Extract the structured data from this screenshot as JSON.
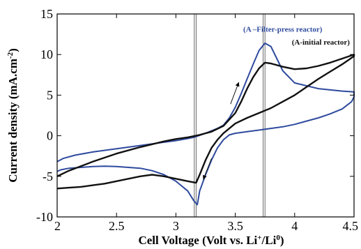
{
  "chart_data": {
    "type": "line",
    "xlabel": "Cell Voltage (Volt vs. Li",
    "xlabel_sup1": "+",
    "xlabel_mid": "/Li",
    "xlabel_sup2": "0",
    "xlabel_end": ")",
    "ylabel": "Current density (mA.cm",
    "ylabel_sup": "-2",
    "ylabel_end": ")",
    "xlim": [
      2,
      4.5
    ],
    "ylim": [
      -10,
      15
    ],
    "xticks": [
      2,
      2.5,
      3,
      3.5,
      4,
      4.5
    ],
    "xtick_labels": [
      "2",
      "2.5",
      "3",
      "3.5",
      "4",
      "4.5"
    ],
    "yticks": [
      -10,
      -5,
      0,
      5,
      10,
      15
    ],
    "ytick_labels": [
      "-10",
      "-5",
      "0",
      "5",
      "10",
      "15"
    ],
    "grid": false,
    "reference_lines_x": [
      3.155,
      3.17,
      3.735,
      3.75
    ],
    "colors": {
      "filter_press": "#2e4a9e",
      "initial": "#111111",
      "axis": "#000000"
    },
    "annotations": [
      {
        "text": "(A –Filter-press reactor)",
        "x": 3.9,
        "y": 12.8,
        "series": "filter_press"
      },
      {
        "text": "(A-initial reactor)",
        "x": 4.22,
        "y": 11.2,
        "series": "initial"
      }
    ],
    "arrows": [
      {
        "from": [
          3.46,
          3.9
        ],
        "to": [
          3.53,
          6.6
        ]
      },
      {
        "from": [
          3.3,
          -2.8
        ],
        "to": [
          3.23,
          -5.4
        ]
      }
    ],
    "series": [
      {
        "key": "filter_press",
        "x": [
          2.0,
          2.05,
          2.15,
          2.3,
          2.5,
          2.7,
          2.9,
          3.0,
          3.1,
          3.15,
          3.2,
          3.25,
          3.3,
          3.35,
          3.4,
          3.45,
          3.5,
          3.55,
          3.6,
          3.65,
          3.7,
          3.75,
          3.8,
          3.85,
          3.9,
          4.0,
          4.2,
          4.4,
          4.5,
          4.5,
          4.48,
          4.4,
          4.3,
          4.2,
          4.1,
          4.0,
          3.9,
          3.8,
          3.7,
          3.6,
          3.5,
          3.45,
          3.4,
          3.35,
          3.3,
          3.25,
          3.2,
          3.18,
          3.15,
          3.1,
          3.0,
          2.9,
          2.8,
          2.7,
          2.6,
          2.5,
          2.4,
          2.3,
          2.2,
          2.1,
          2.03,
          2.0
        ],
        "y": [
          -3.2,
          -2.8,
          -2.4,
          -2.0,
          -1.6,
          -1.2,
          -0.8,
          -0.6,
          -0.35,
          -0.2,
          0.05,
          0.3,
          0.6,
          0.9,
          1.3,
          2.2,
          3.5,
          5.2,
          7.0,
          8.8,
          10.5,
          11.4,
          11.0,
          9.5,
          8.0,
          6.5,
          5.8,
          5.5,
          5.4,
          4.8,
          4.2,
          3.3,
          2.7,
          2.2,
          1.8,
          1.4,
          1.1,
          0.9,
          0.7,
          0.5,
          0.3,
          0.1,
          -0.5,
          -1.5,
          -3.0,
          -4.8,
          -6.8,
          -8.5,
          -8.0,
          -6.8,
          -5.6,
          -4.8,
          -4.3,
          -4.0,
          -3.9,
          -3.8,
          -3.75,
          -3.8,
          -3.9,
          -4.0,
          -4.2,
          -4.4
        ]
      },
      {
        "key": "initial",
        "x": [
          2.0,
          2.1,
          2.3,
          2.5,
          2.7,
          2.9,
          3.0,
          3.1,
          3.15,
          3.2,
          3.3,
          3.4,
          3.5,
          3.55,
          3.6,
          3.65,
          3.7,
          3.75,
          3.8,
          3.9,
          4.0,
          4.1,
          4.2,
          4.3,
          4.4,
          4.5,
          4.5,
          4.4,
          4.3,
          4.2,
          4.1,
          4.0,
          3.9,
          3.8,
          3.7,
          3.6,
          3.5,
          3.45,
          3.4,
          3.35,
          3.3,
          3.25,
          3.2,
          3.17,
          3.1,
          3.0,
          2.9,
          2.8,
          2.7,
          2.6,
          2.5,
          2.4,
          2.3,
          2.2,
          2.1,
          2.0
        ],
        "y": [
          -5.0,
          -4.3,
          -3.2,
          -2.2,
          -1.4,
          -0.7,
          -0.4,
          -0.2,
          -0.05,
          0.1,
          0.5,
          1.2,
          2.8,
          4.2,
          5.8,
          7.2,
          8.3,
          9.0,
          8.9,
          8.5,
          8.2,
          8.3,
          8.6,
          9.0,
          9.5,
          10.0,
          9.8,
          8.8,
          7.9,
          7.0,
          6.0,
          5.0,
          4.2,
          3.4,
          2.8,
          2.2,
          1.5,
          0.9,
          0.3,
          -0.5,
          -1.5,
          -3.0,
          -4.8,
          -5.8,
          -5.6,
          -5.3,
          -5.0,
          -4.8,
          -5.0,
          -5.3,
          -5.6,
          -5.9,
          -6.1,
          -6.3,
          -6.4,
          -6.5
        ]
      }
    ]
  }
}
